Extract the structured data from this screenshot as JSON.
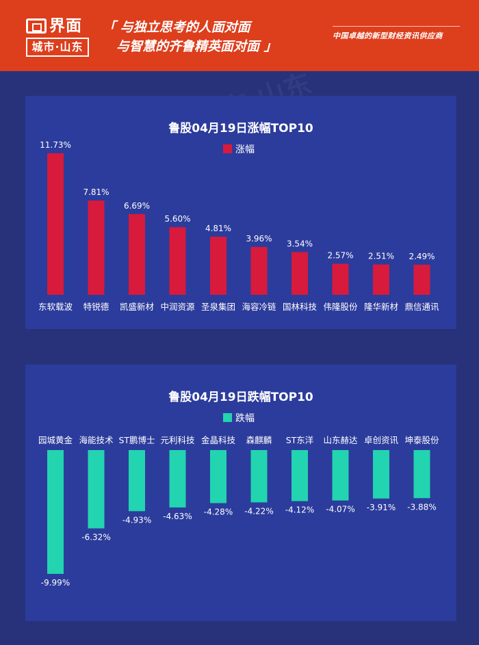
{
  "header": {
    "brand": "界面",
    "brand_sub": "城市·山东",
    "slogan_line1": "「 与独立思考的人面对面",
    "slogan_line2": "与智慧的齐鲁精英面对面 」",
    "tagline": "中国卓越的新型财经资讯供应商",
    "color": "#dd3e1c"
  },
  "chart_data": [
    {
      "type": "bar",
      "title": "鲁股04月19日涨幅TOP10",
      "legend": "涨幅",
      "color": "#d81a3c",
      "categories": [
        "东软载波",
        "特锐德",
        "凯盛新材",
        "中润资源",
        "圣泉集团",
        "海容冷链",
        "国林科技",
        "伟隆股份",
        "隆华新材",
        "鼎信通讯"
      ],
      "values": [
        11.73,
        7.81,
        6.69,
        5.6,
        4.81,
        3.96,
        3.54,
        2.57,
        2.51,
        2.49
      ],
      "labels": [
        "11.73%",
        "7.81%",
        "6.69%",
        "5.60%",
        "4.81%",
        "3.96%",
        "3.54%",
        "2.57%",
        "2.51%",
        "2.49%"
      ],
      "legend_position": "top-center"
    },
    {
      "type": "bar",
      "title": "鲁股04月19日跌幅TOP10",
      "legend": "跌幅",
      "color": "#22d4b0",
      "categories": [
        "园城黄金",
        "海能技术",
        "ST鹏博士",
        "元利科技",
        "金晶科技",
        "森麒麟",
        "ST东洋",
        "山东赫达",
        "卓创资讯",
        "坤泰股份"
      ],
      "values": [
        -9.99,
        -6.32,
        -4.93,
        -4.63,
        -4.28,
        -4.22,
        -4.12,
        -4.07,
        -3.91,
        -3.88
      ],
      "labels": [
        "-9.99%",
        "-6.32%",
        "-4.93%",
        "-4.63%",
        "-4.28%",
        "-4.22%",
        "-4.12%",
        "-4.07%",
        "-3.91%",
        "-3.88%"
      ],
      "legend_position": "top-center"
    }
  ]
}
